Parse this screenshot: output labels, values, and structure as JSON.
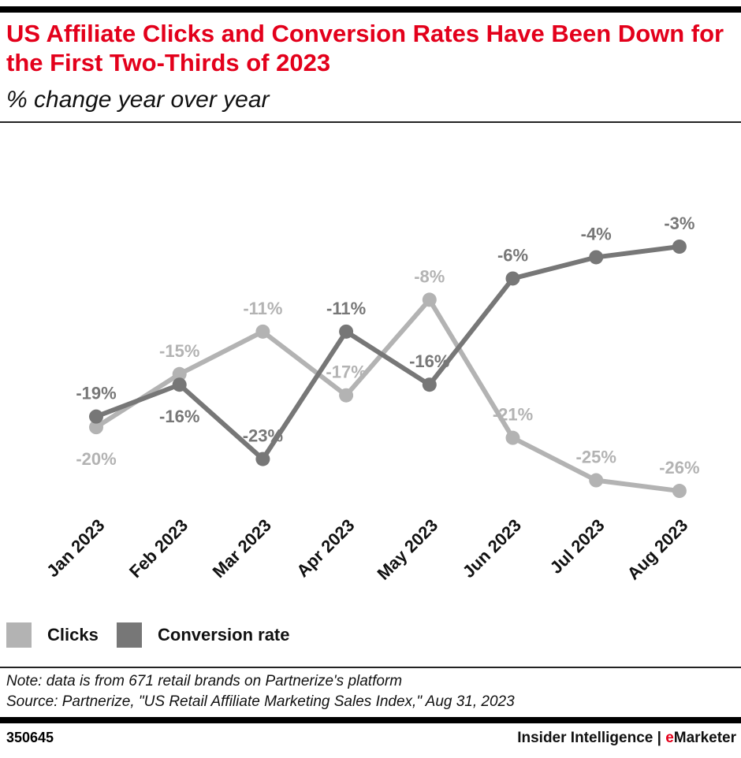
{
  "header": {
    "title": "US Affiliate Clicks and Conversion Rates Have Been Down for the First Two-Thirds of 2023",
    "subtitle": "% change year over year"
  },
  "chart_data": {
    "type": "line",
    "title": "US Affiliate Clicks and Conversion Rates Have Been Down for the First Two-Thirds of 2023",
    "subtitle": "% change year over year",
    "categories": [
      "Jan 2023",
      "Feb 2023",
      "Mar 2023",
      "Apr 2023",
      "May 2023",
      "Jun 2023",
      "Jul 2023",
      "Aug 2023"
    ],
    "series": [
      {
        "name": "Clicks",
        "color": "#b3b3b3",
        "values": [
          -20,
          -15,
          -11,
          -17,
          -8,
          -21,
          -25,
          -26
        ],
        "labels": [
          "-20%",
          "-15%",
          "-11%",
          "-17%",
          "-8%",
          "-21%",
          "-25%",
          "-26%"
        ]
      },
      {
        "name": "Conversion rate",
        "color": "#777777",
        "values": [
          -19,
          -16,
          -23,
          -11,
          -16,
          -6,
          -4,
          -3
        ],
        "labels": [
          "-19%",
          "-16%",
          "-23%",
          "-11%",
          "-16%",
          "-6%",
          "-4%",
          "-3%"
        ]
      }
    ],
    "grid": false,
    "legend": "bottom-left"
  },
  "footer": {
    "note": "Note: data is from 671 retail brands on Partnerize's platform",
    "source": "Source: Partnerize, \"US Retail Affiliate Marketing Sales Index,\" Aug 31, 2023",
    "chart_id": "350645",
    "brand_a": "Insider Intelligence | ",
    "brand_e": "e",
    "brand_b": "Marketer"
  }
}
